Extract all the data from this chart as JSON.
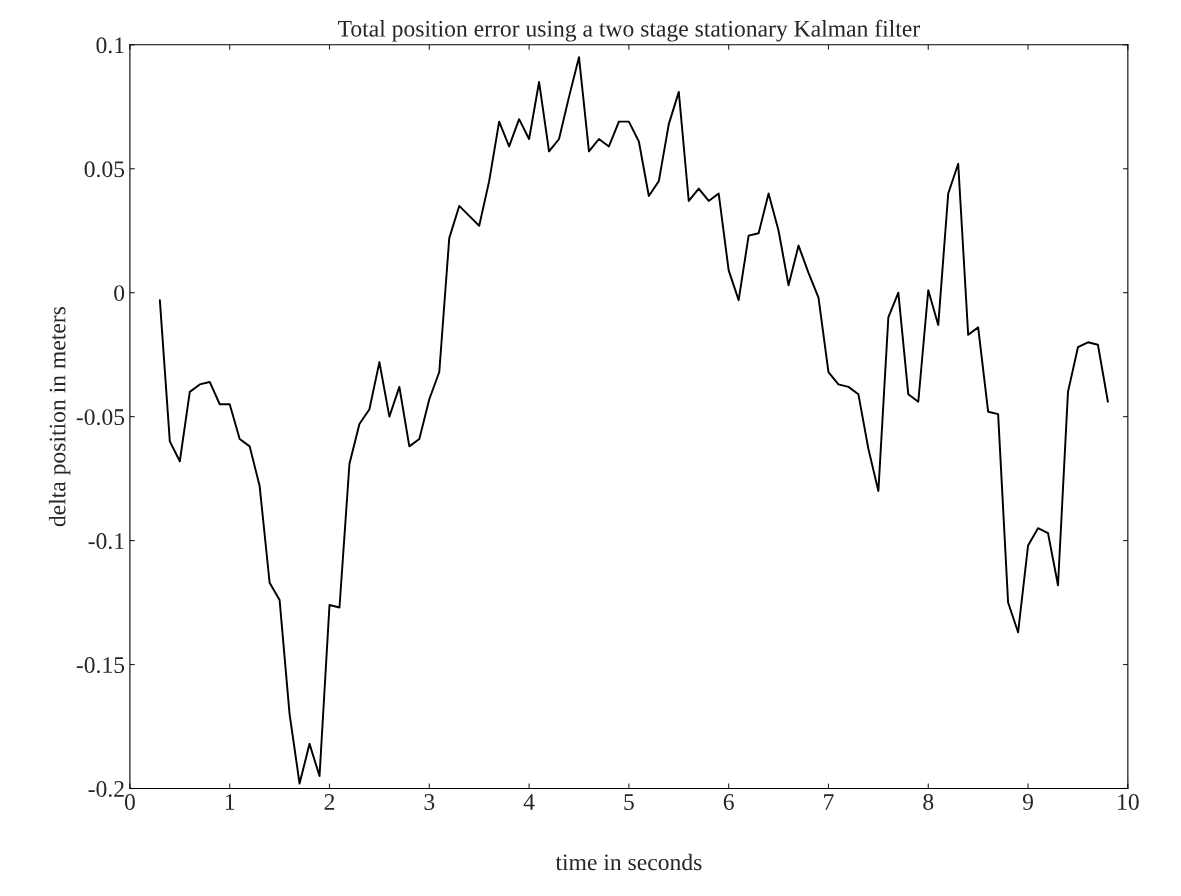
{
  "chart_data": {
    "type": "line",
    "title": "Total position error using a two stage stationary Kalman filter",
    "xlabel": "time in seconds",
    "ylabel": "delta position in meters",
    "series": [
      {
        "color": "#000000",
        "x": [
          0.3,
          0.4,
          0.5,
          0.6,
          0.7,
          0.8,
          0.9,
          1.0,
          1.1,
          1.2,
          1.3,
          1.4,
          1.5,
          1.6,
          1.7,
          1.8,
          1.9,
          2.0,
          2.1,
          2.2,
          2.3,
          2.4,
          2.5,
          2.6,
          2.7,
          2.8,
          2.9,
          3.0,
          3.1,
          3.2,
          3.3,
          3.4,
          3.5,
          3.6,
          3.7,
          3.8,
          3.9,
          4.0,
          4.1,
          4.2,
          4.3,
          4.4,
          4.5,
          4.6,
          4.7,
          4.8,
          4.9,
          5.0,
          5.1,
          5.2,
          5.3,
          5.4,
          5.5,
          5.6,
          5.7,
          5.8,
          5.9,
          6.0,
          6.1,
          6.2,
          6.3,
          6.4,
          6.5,
          6.6,
          6.7,
          6.8,
          6.9,
          7.0,
          7.1,
          7.2,
          7.3,
          7.4,
          7.5,
          7.6,
          7.7,
          7.8,
          7.9,
          8.0,
          8.1,
          8.2,
          8.3,
          8.4,
          8.5,
          8.6,
          8.7,
          8.8,
          8.9,
          9.0,
          9.1,
          9.2,
          9.3,
          9.4,
          9.5,
          9.6,
          9.7,
          9.8
        ],
        "values": [
          -0.003,
          -0.06,
          -0.068,
          -0.04,
          -0.037,
          -0.036,
          -0.045,
          -0.045,
          -0.059,
          -0.062,
          -0.078,
          -0.117,
          -0.124,
          -0.17,
          -0.198,
          -0.182,
          -0.195,
          -0.126,
          -0.127,
          -0.069,
          -0.053,
          -0.047,
          -0.028,
          -0.05,
          -0.038,
          -0.062,
          -0.059,
          -0.043,
          -0.032,
          0.022,
          0.035,
          0.031,
          0.027,
          0.045,
          0.069,
          0.059,
          0.07,
          0.062,
          0.085,
          0.057,
          0.062,
          0.079,
          0.095,
          0.057,
          0.062,
          0.059,
          0.069,
          0.069,
          0.061,
          0.039,
          0.045,
          0.068,
          0.081,
          0.037,
          0.042,
          0.037,
          0.04,
          0.009,
          -0.003,
          0.023,
          0.024,
          0.04,
          0.025,
          0.003,
          0.019,
          0.008,
          -0.002,
          -0.032,
          -0.037,
          -0.038,
          -0.041,
          -0.063,
          -0.08,
          -0.01,
          0.0,
          -0.041,
          -0.044,
          0.001,
          -0.013,
          0.04,
          0.052,
          -0.017,
          -0.014,
          -0.048,
          -0.049,
          -0.125,
          -0.137,
          -0.102,
          -0.095,
          -0.097,
          -0.118,
          -0.04,
          -0.022,
          -0.02,
          -0.021,
          -0.044
        ]
      }
    ],
    "xlim": [
      0,
      10
    ],
    "xticks": [
      0,
      1,
      2,
      3,
      4,
      5,
      6,
      7,
      8,
      9,
      10
    ],
    "ylim": [
      -0.2,
      0.1
    ],
    "yticks": [
      -0.2,
      -0.15,
      -0.1,
      -0.05,
      0,
      0.05,
      0.1
    ],
    "grid": false,
    "legend": false,
    "marker": "none",
    "line_style": "solid"
  }
}
